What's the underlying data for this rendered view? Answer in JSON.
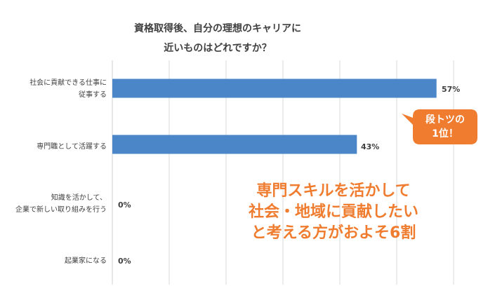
{
  "chart_data": {
    "type": "bar",
    "orientation": "horizontal",
    "title_lines": [
      "資格取得後、自分の理想のキャリアに",
      "近いものはどれですか？"
    ],
    "categories": [
      [
        "社会に貢献できる仕事に",
        "従事する"
      ],
      [
        "専門職として活躍する"
      ],
      [
        "知識を活かして、",
        "企業で新しい取り組みを行う"
      ],
      [
        "起業家になる"
      ]
    ],
    "values": [
      57,
      43,
      0,
      0
    ],
    "value_labels": [
      "57%",
      "43%",
      "0%",
      "0%"
    ],
    "xlim": [
      0,
      60
    ],
    "grid": true,
    "colors": {
      "bar": "#4a86c8",
      "grid": "#d9d9d9",
      "callout": "#ef7c2f",
      "annotation": "#ef7c2f"
    }
  },
  "callout": {
    "lines": [
      "段トツの",
      "1位！"
    ]
  },
  "annotation": {
    "lines": [
      "専門スキルを活かして",
      "社会・地域に貢献したい",
      "と考える方がおよそ6割"
    ]
  }
}
